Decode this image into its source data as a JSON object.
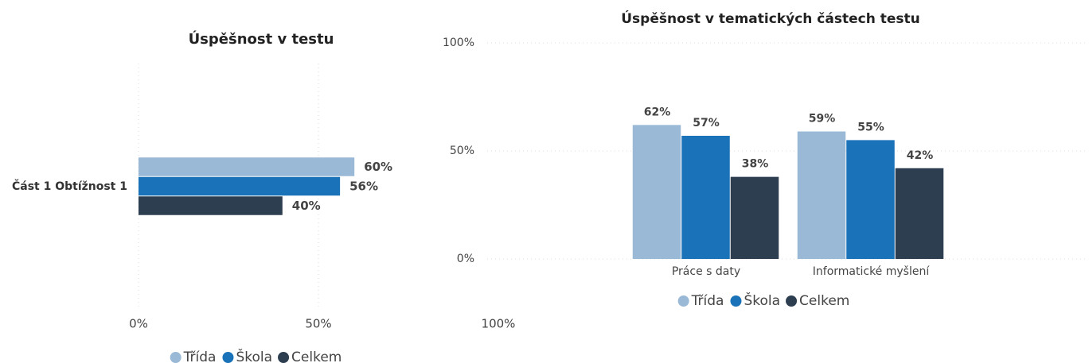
{
  "chart_data": [
    {
      "type": "hbar",
      "title": "Úspěšnost v testu",
      "categories": [
        "Část 1 Obtížnost 1"
      ],
      "series": [
        {
          "name": "Třída",
          "color": "#9ab9d6",
          "values": [
            60
          ],
          "value_labels": [
            "60%"
          ]
        },
        {
          "name": "Škola",
          "color": "#1a72b8",
          "values": [
            56
          ],
          "value_labels": [
            "56%"
          ]
        },
        {
          "name": "Celkem",
          "color": "#2d3e50",
          "values": [
            40
          ],
          "value_labels": [
            "40%"
          ]
        }
      ],
      "xlim": [
        0,
        100
      ],
      "xticks": [
        {
          "value": 0,
          "label": "0%"
        },
        {
          "value": 50,
          "label": "50%"
        },
        {
          "value": 100,
          "label": "100%"
        }
      ],
      "grid": true,
      "legend": "bottom"
    },
    {
      "type": "vbar",
      "title": "Úspěšnost v tematických částech testu",
      "categories": [
        "Práce s daty",
        "Informatické myšlení"
      ],
      "series": [
        {
          "name": "Třída",
          "color": "#9ab9d6",
          "values": [
            62,
            59
          ],
          "value_labels": [
            "62%",
            "59%"
          ]
        },
        {
          "name": "Škola",
          "color": "#1a72b8",
          "values": [
            57,
            55
          ],
          "value_labels": [
            "57%",
            "55%"
          ]
        },
        {
          "name": "Celkem",
          "color": "#2d3e50",
          "values": [
            38,
            42
          ],
          "value_labels": [
            "38%",
            "42%"
          ]
        }
      ],
      "ylim": [
        0,
        100
      ],
      "yticks": [
        {
          "value": 0,
          "label": "0%"
        },
        {
          "value": 50,
          "label": "50%"
        },
        {
          "value": 100,
          "label": "100%"
        }
      ],
      "grid": true,
      "legend": "bottom"
    }
  ]
}
